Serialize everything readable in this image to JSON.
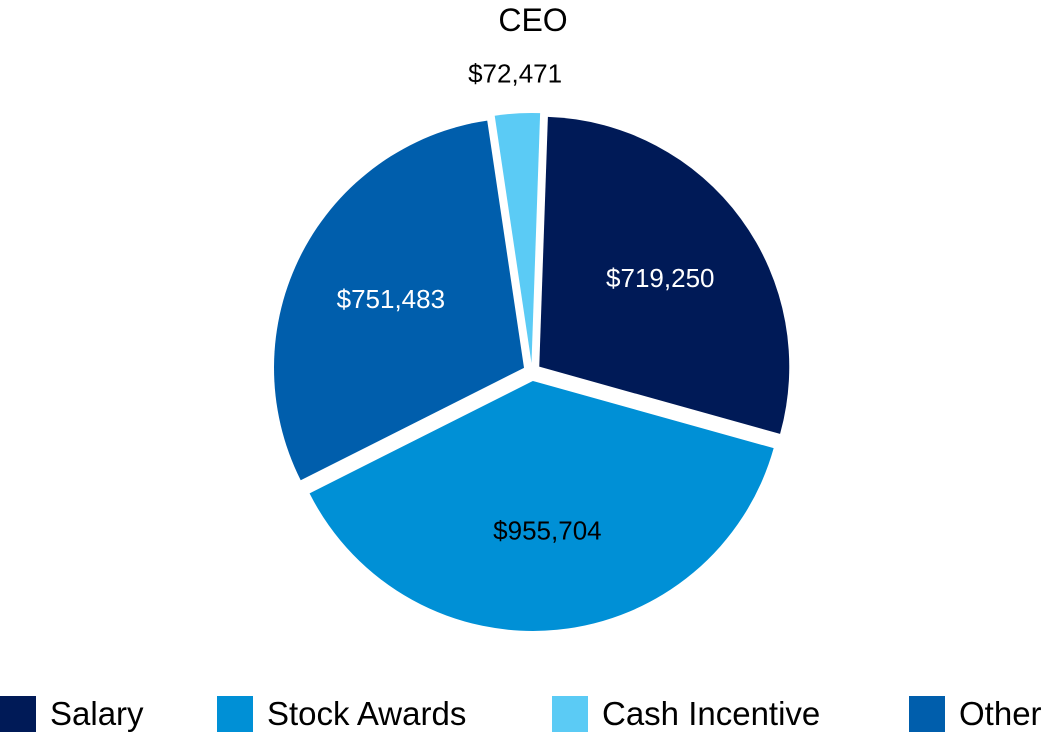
{
  "chart_data": {
    "type": "pie",
    "title": "CEO",
    "slices": [
      {
        "name": "Salary",
        "value": 719250,
        "label": "$719,250",
        "color": "#001A57",
        "label_color": "#FFFFFF"
      },
      {
        "name": "Stock Awards",
        "value": 955704,
        "label": "$955,704",
        "color": "#0090D6",
        "label_color": "#000000"
      },
      {
        "name": "Other",
        "value": 751483,
        "label": "$751,483",
        "color": "#005EAC",
        "label_color": "#FFFFFF"
      },
      {
        "name": "Cash Incentive",
        "value": 72471,
        "label": "$72,471",
        "color": "#5BCBF5",
        "label_color": "#000000"
      }
    ],
    "legend": {
      "position": "bottom",
      "entries": [
        "Salary",
        "Stock Awards",
        "Cash Incentive",
        "Other"
      ]
    }
  }
}
